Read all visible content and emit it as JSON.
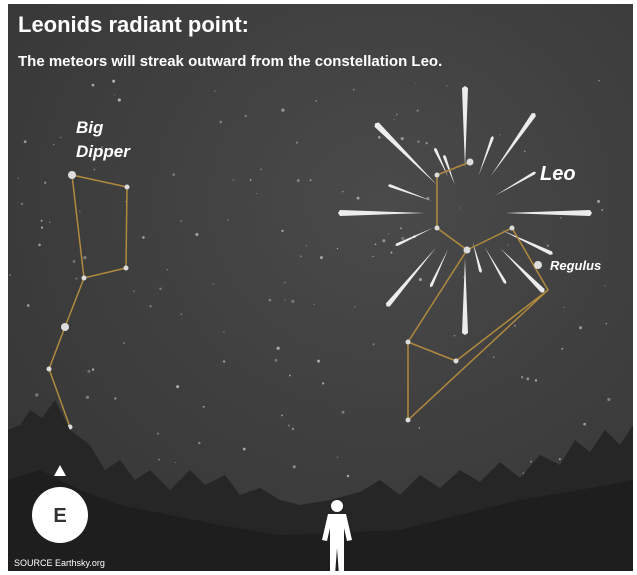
{
  "header": {
    "title": "Leonids radiant point:",
    "subtitle": "The meteors will streak outward from the constellation Leo."
  },
  "labels": {
    "big_dipper": [
      "Big",
      "Dipper"
    ],
    "leo": "Leo",
    "regulus": "Regulus"
  },
  "compass": "E",
  "source": "SOURCE Earthsky.org"
}
